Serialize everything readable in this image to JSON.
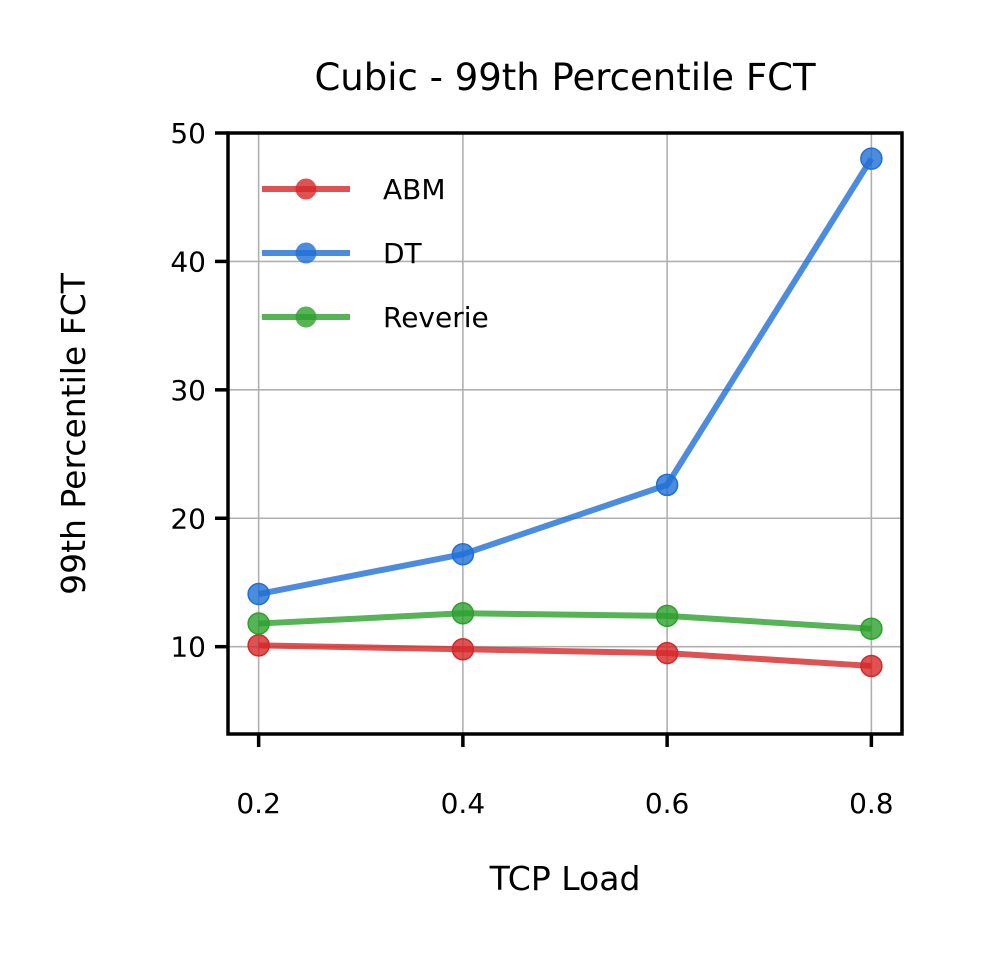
{
  "chart_data": {
    "type": "line",
    "title": "Cubic - 99th Percentile FCT",
    "xlabel": "TCP Load",
    "ylabel": "99th Percentile FCT",
    "x": [
      0.2,
      0.4,
      0.6,
      0.8
    ],
    "x_tick_labels": [
      "0.2",
      "0.4",
      "0.6",
      "0.8"
    ],
    "y_ticks": [
      10,
      20,
      30,
      40,
      50
    ],
    "y_tick_labels": [
      "10",
      "20",
      "30",
      "40",
      "50"
    ],
    "xlim": [
      0.17,
      0.83
    ],
    "ylim": [
      3.2,
      50
    ],
    "grid": true,
    "legend_position": "upper-left",
    "series": [
      {
        "name": "ABM",
        "color": "#d62728",
        "values": [
          10.1,
          9.8,
          9.5,
          8.5
        ]
      },
      {
        "name": "DT",
        "color": "#1f6fd6",
        "values": [
          14.1,
          17.2,
          22.6,
          48.0
        ]
      },
      {
        "name": "Reverie",
        "color": "#2ca02c",
        "values": [
          11.8,
          12.6,
          12.4,
          11.4
        ]
      }
    ]
  }
}
